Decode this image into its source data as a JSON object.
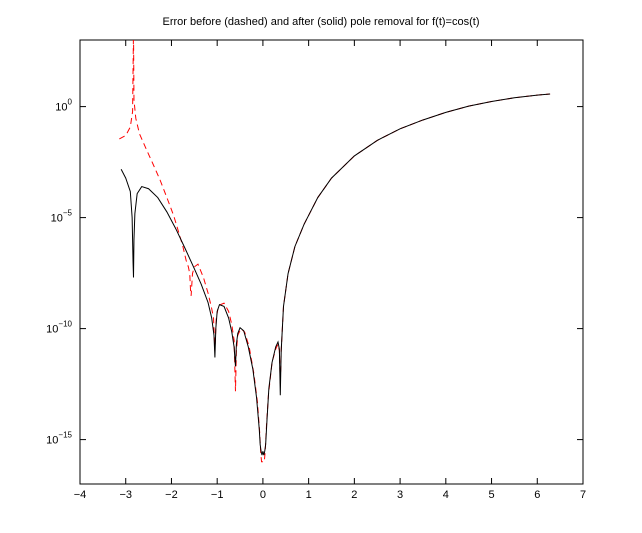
{
  "chart_data": {
    "type": "line",
    "title": "Error before (dashed) and after (solid) pole removal for f(t)=cos(t)",
    "xlabel": "",
    "ylabel": "",
    "xlim": [
      -4,
      7
    ],
    "ylim": [
      1e-17,
      1000.0
    ],
    "yscale": "log",
    "grid": false,
    "x_ticks": [
      -4,
      -3,
      -2,
      -1,
      0,
      1,
      2,
      3,
      4,
      5,
      6,
      7
    ],
    "y_ticks": [
      {
        "value": 1,
        "base": "10",
        "exp": "0"
      },
      {
        "value": 1e-05,
        "base": "10",
        "exp": "−5"
      },
      {
        "value": 1e-10,
        "base": "10",
        "exp": "−10"
      },
      {
        "value": 1e-15,
        "base": "10",
        "exp": "−15"
      }
    ],
    "series": [
      {
        "style": "dashed",
        "color": "#ff0000",
        "points": [
          [
            -3.14,
            0.035
          ],
          [
            -3.0,
            0.05
          ],
          [
            -2.9,
            0.12
          ],
          [
            -2.85,
            0.6
          ],
          [
            -2.83,
            3000
          ],
          [
            -2.82,
            2.0
          ],
          [
            -2.78,
            0.3
          ],
          [
            -2.7,
            0.06
          ],
          [
            -2.55,
            0.012
          ],
          [
            -2.4,
            0.0025
          ],
          [
            -2.25,
            0.0005
          ],
          [
            -2.1,
            8e-05
          ],
          [
            -1.95,
            1.2e-05
          ],
          [
            -1.85,
            2.5e-06
          ],
          [
            -1.75,
            5e-07
          ],
          [
            -1.68,
            1.2e-07
          ],
          [
            -1.63,
            6e-08
          ],
          [
            -1.6,
            3e-08
          ],
          [
            -1.58,
            4e-09
          ],
          [
            -1.57,
            3e-09
          ],
          [
            -1.54,
            3e-08
          ],
          [
            -1.5,
            6e-08
          ],
          [
            -1.42,
            8e-08
          ],
          [
            -1.3,
            2e-08
          ],
          [
            -1.2,
            4e-09
          ],
          [
            -1.12,
            8e-10
          ],
          [
            -1.08,
            3e-10
          ],
          [
            -1.05,
            1e-11
          ],
          [
            -1.02,
            3e-10
          ],
          [
            -0.97,
            1.1e-09
          ],
          [
            -0.85,
            1.4e-09
          ],
          [
            -0.75,
            6e-10
          ],
          [
            -0.68,
            1.5e-10
          ],
          [
            -0.63,
            3e-11
          ],
          [
            -0.6,
            1.5e-13
          ],
          [
            -0.58,
            1e-11
          ],
          [
            -0.55,
            5e-11
          ],
          [
            -0.48,
            1e-10
          ],
          [
            -0.4,
            7e-11
          ],
          [
            -0.3,
            1.5e-11
          ],
          [
            -0.2,
            1e-12
          ],
          [
            -0.12,
            5e-14
          ],
          [
            -0.07,
            2e-15
          ],
          [
            -0.05,
            3e-16
          ],
          [
            -0.03,
            1e-16
          ],
          [
            0.0,
            1e-16
          ],
          [
            0.03,
            1e-16
          ],
          [
            0.05,
            3e-16
          ],
          [
            0.08,
            5e-15
          ],
          [
            0.12,
            1e-13
          ],
          [
            0.2,
            3e-12
          ],
          [
            0.28,
            1.2e-11
          ],
          [
            0.33,
            2e-11
          ],
          [
            0.36,
            1e-11
          ],
          [
            0.38,
            3e-13
          ],
          [
            0.4,
            1e-11
          ],
          [
            0.45,
            1e-09
          ],
          [
            0.55,
            3e-08
          ],
          [
            0.7,
            5e-07
          ],
          [
            0.9,
            5e-06
          ],
          [
            1.2,
            8e-05
          ],
          [
            1.5,
            0.0006
          ],
          [
            2.0,
            0.006
          ],
          [
            2.5,
            0.03
          ],
          [
            3.0,
            0.1
          ],
          [
            3.5,
            0.25
          ],
          [
            4.0,
            0.55
          ],
          [
            4.5,
            1.05
          ],
          [
            5.0,
            1.7
          ],
          [
            5.5,
            2.5
          ],
          [
            6.0,
            3.3
          ],
          [
            6.28,
            3.7
          ]
        ]
      },
      {
        "style": "solid",
        "color": "#000000",
        "points": [
          [
            -3.1,
            0.0015
          ],
          [
            -3.0,
            0.0006
          ],
          [
            -2.9,
            0.00015
          ],
          [
            -2.86,
            1e-05
          ],
          [
            -2.84,
            1e-07
          ],
          [
            -2.83,
            2e-08
          ],
          [
            -2.82,
            1e-06
          ],
          [
            -2.8,
            1.5e-05
          ],
          [
            -2.75,
            0.00012
          ],
          [
            -2.65,
            0.00025
          ],
          [
            -2.5,
            0.0002
          ],
          [
            -2.3,
            8e-05
          ],
          [
            -2.1,
            1.8e-05
          ],
          [
            -1.9,
            3e-06
          ],
          [
            -1.7,
            4e-07
          ],
          [
            -1.5,
            5e-08
          ],
          [
            -1.35,
            1e-08
          ],
          [
            -1.2,
            1.5e-09
          ],
          [
            -1.12,
            3e-10
          ],
          [
            -1.07,
            5e-11
          ],
          [
            -1.05,
            5e-12
          ],
          [
            -1.03,
            1e-10
          ],
          [
            -1.0,
            6e-10
          ],
          [
            -0.95,
            1.2e-09
          ],
          [
            -0.85,
            1e-09
          ],
          [
            -0.75,
            3e-10
          ],
          [
            -0.68,
            7e-11
          ],
          [
            -0.63,
            1.5e-11
          ],
          [
            -0.6,
            2e-12
          ],
          [
            -0.58,
            2e-11
          ],
          [
            -0.55,
            6e-11
          ],
          [
            -0.5,
            1.1e-10
          ],
          [
            -0.42,
            8e-11
          ],
          [
            -0.32,
            1.5e-11
          ],
          [
            -0.22,
            1.5e-12
          ],
          [
            -0.14,
            8e-14
          ],
          [
            -0.08,
            3e-15
          ],
          [
            -0.06,
            6e-16
          ],
          [
            -0.04,
            3e-16
          ],
          [
            -0.02,
            2e-16
          ],
          [
            0.0,
            3e-16
          ],
          [
            0.02,
            2e-16
          ],
          [
            0.04,
            3e-16
          ],
          [
            0.06,
            6e-16
          ],
          [
            0.09,
            8e-15
          ],
          [
            0.13,
            2e-13
          ],
          [
            0.2,
            3e-12
          ],
          [
            0.28,
            1.5e-11
          ],
          [
            0.33,
            2.5e-11
          ],
          [
            0.36,
            1.2e-11
          ],
          [
            0.38,
            1e-13
          ],
          [
            0.4,
            1e-11
          ],
          [
            0.45,
            1e-09
          ],
          [
            0.55,
            3e-08
          ],
          [
            0.7,
            5e-07
          ],
          [
            0.9,
            5e-06
          ],
          [
            1.2,
            8e-05
          ],
          [
            1.5,
            0.0006
          ],
          [
            2.0,
            0.006
          ],
          [
            2.5,
            0.03
          ],
          [
            3.0,
            0.1
          ],
          [
            3.5,
            0.25
          ],
          [
            4.0,
            0.55
          ],
          [
            4.5,
            1.05
          ],
          [
            5.0,
            1.7
          ],
          [
            5.5,
            2.5
          ],
          [
            6.0,
            3.3
          ],
          [
            6.28,
            3.7
          ]
        ]
      }
    ]
  }
}
